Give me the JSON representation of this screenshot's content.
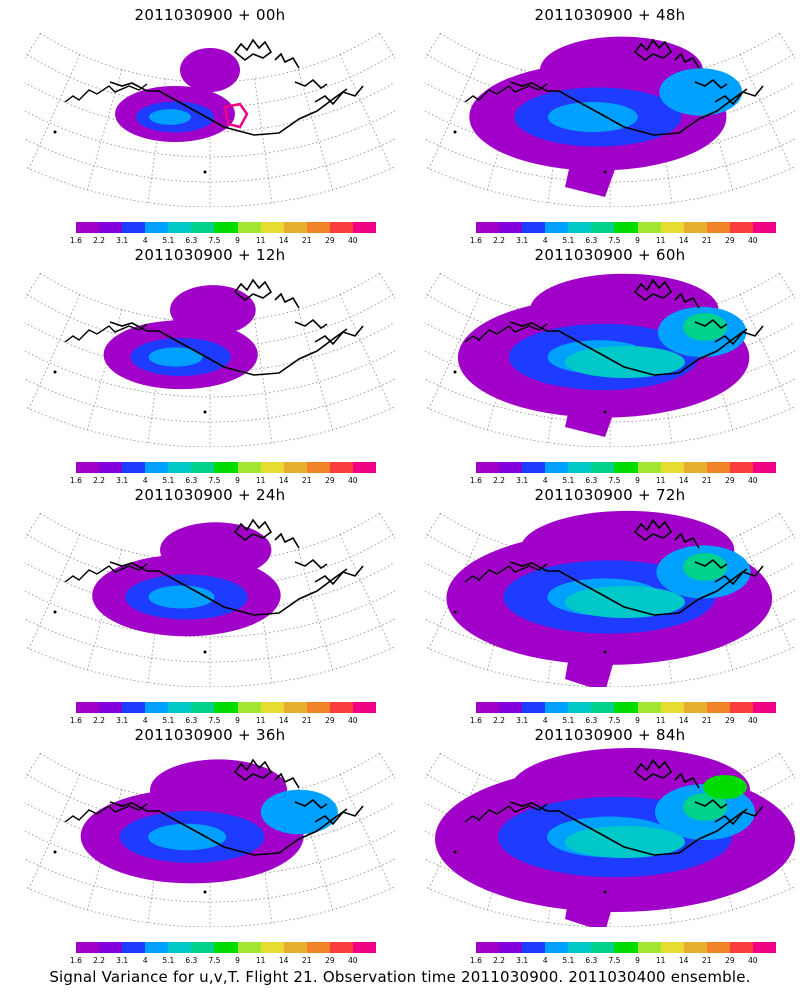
{
  "panels": [
    {
      "title": "2011030900 + 00h",
      "level": 0
    },
    {
      "title": "2011030900 + 48h",
      "level": 4
    },
    {
      "title": "2011030900 + 12h",
      "level": 1
    },
    {
      "title": "2011030900 + 60h",
      "level": 5
    },
    {
      "title": "2011030900 + 24h",
      "level": 2
    },
    {
      "title": "2011030900 + 72h",
      "level": 6
    },
    {
      "title": "2011030900 + 36h",
      "level": 3
    },
    {
      "title": "2011030900 + 84h",
      "level": 7
    }
  ],
  "colorbar": {
    "labels": [
      "1.6",
      "2.2",
      "3.1",
      "4",
      "5.1",
      "6.3",
      "7.5",
      "9",
      "11",
      "14",
      "21",
      "29",
      "40"
    ],
    "colors": [
      "#a000c8",
      "#8200dc",
      "#1e3cff",
      "#00a0ff",
      "#00c8c8",
      "#00d28c",
      "#00dc00",
      "#a0e632",
      "#e6dc32",
      "#e6af2d",
      "#f08228",
      "#fa3c3c",
      "#f00082"
    ]
  },
  "footer": "Signal Variance for u,v,T. Flight 21. Observation time 2011030900. 2011030400 ensemble."
}
